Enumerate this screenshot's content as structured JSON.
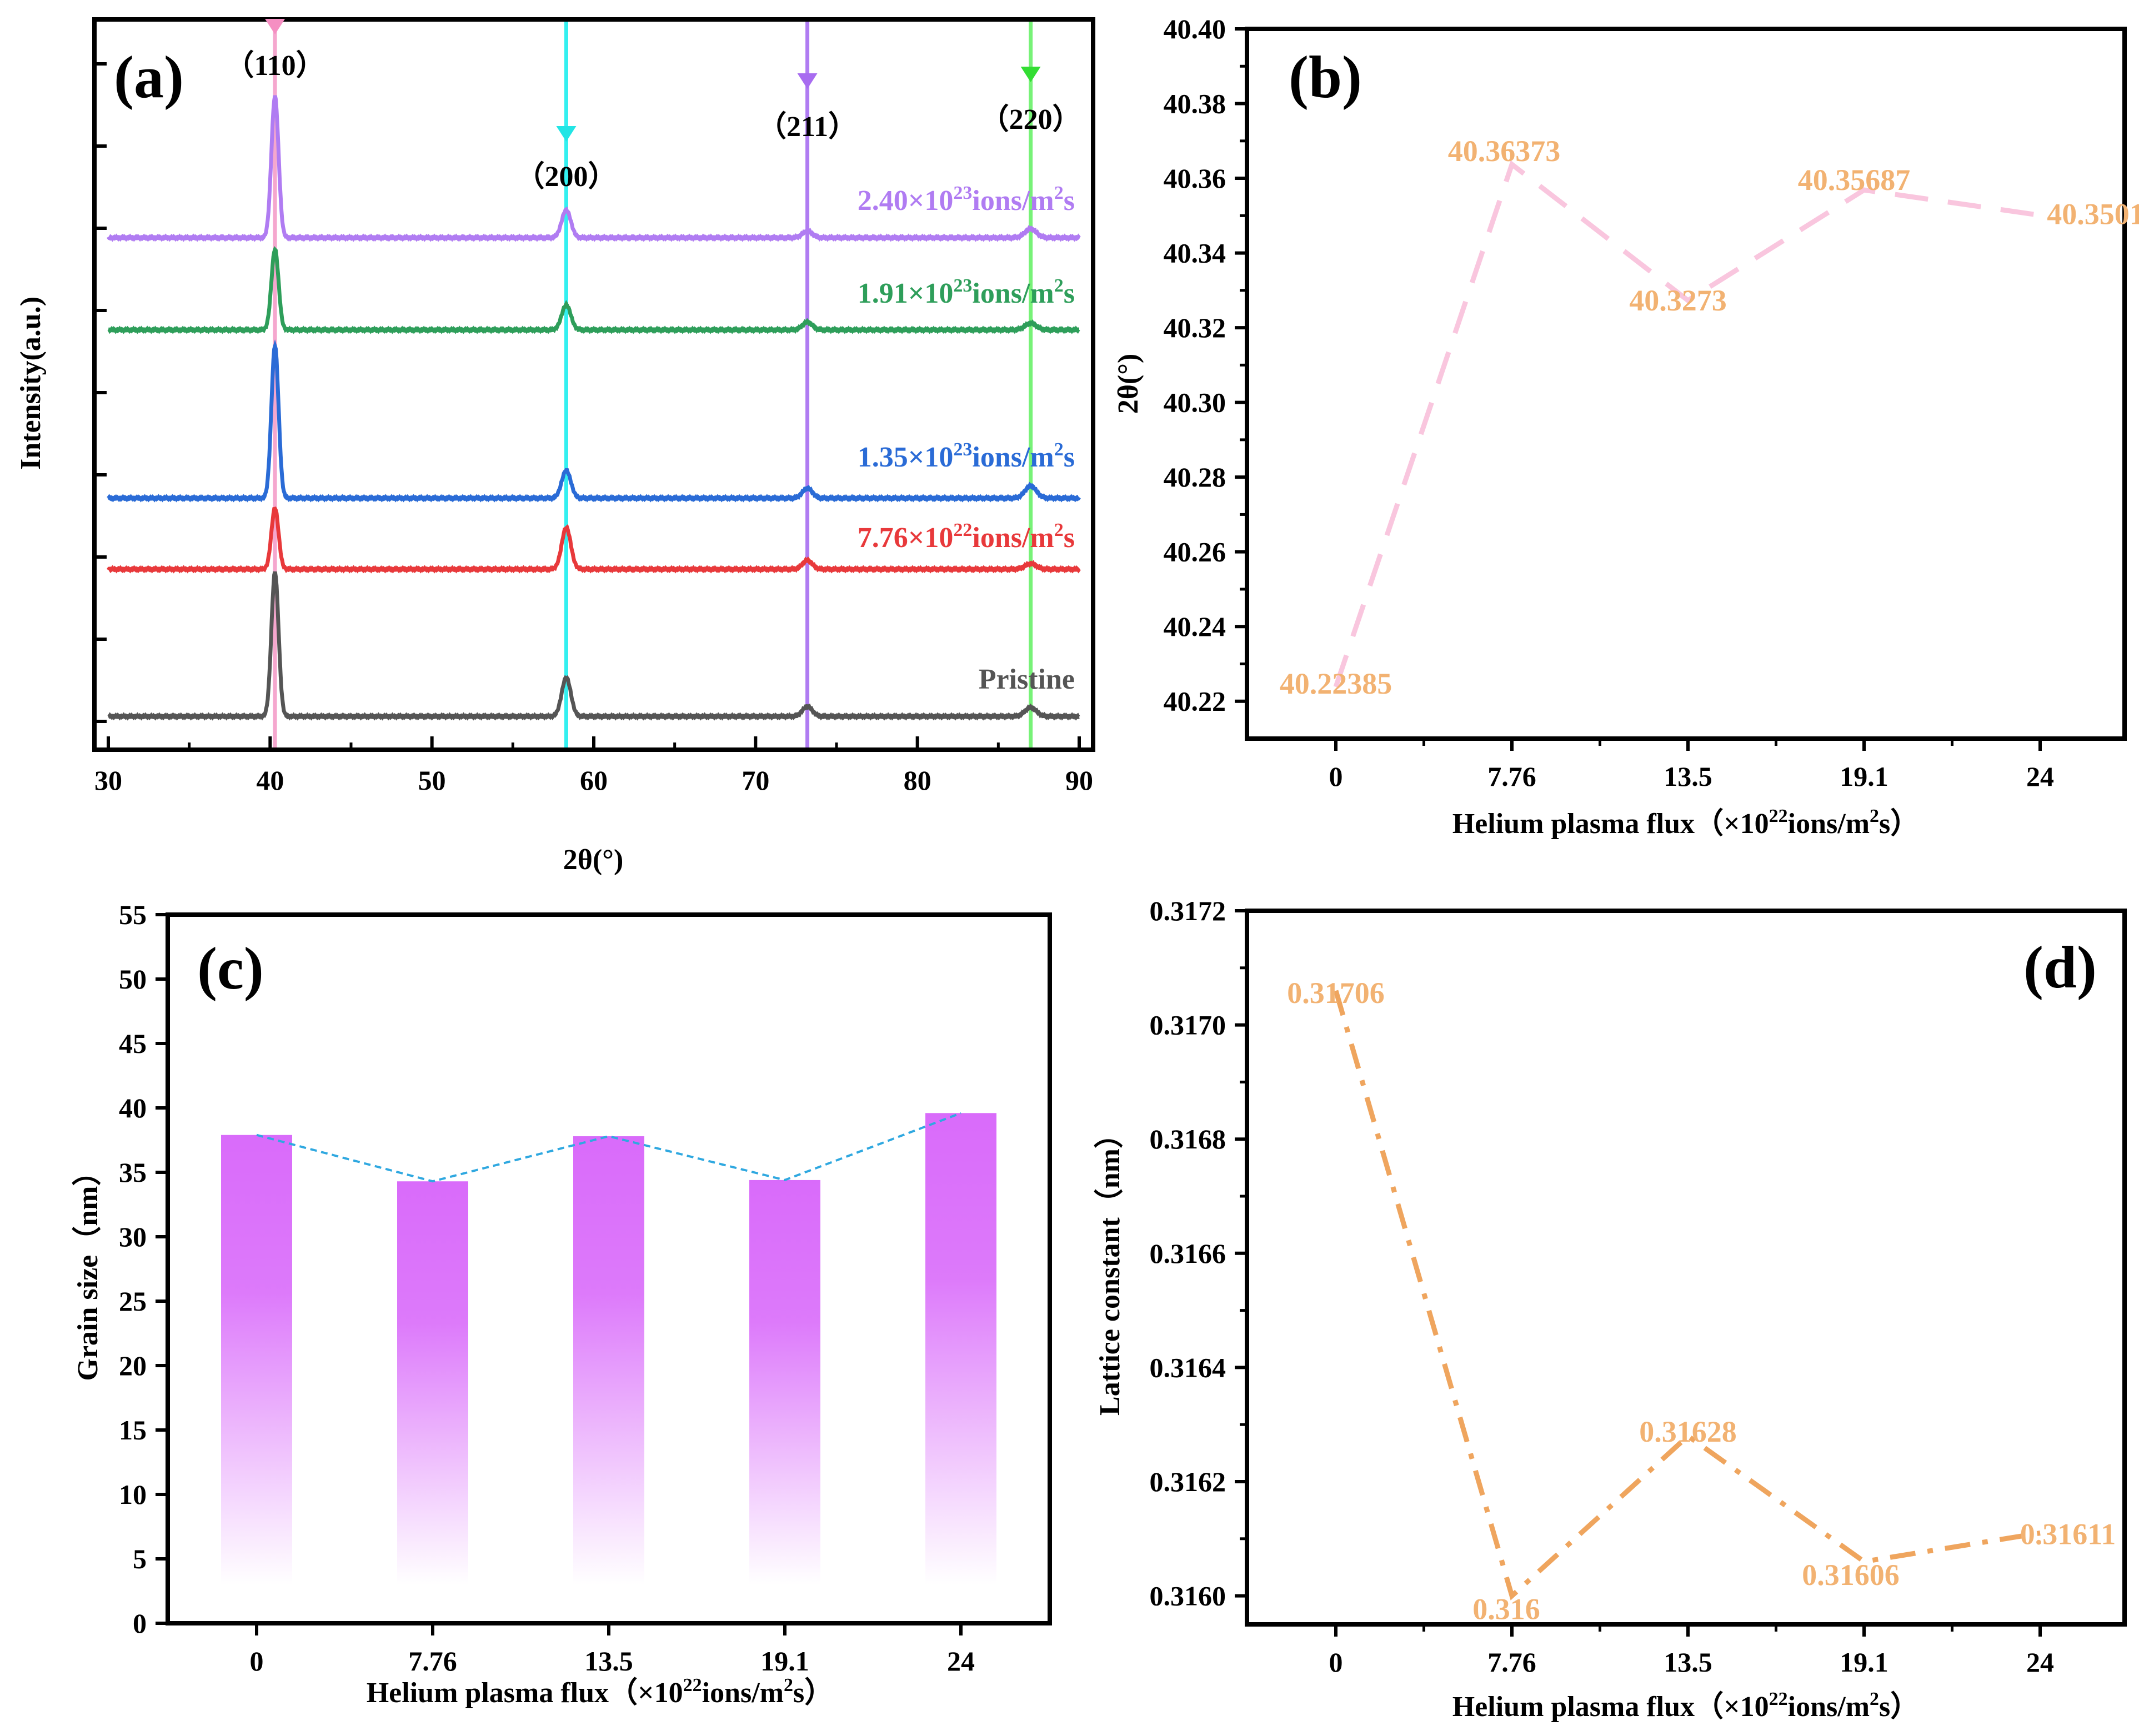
{
  "chart_data": [
    {
      "id": "a",
      "type": "line",
      "panel_label": "(a)",
      "xlabel": "2θ(°)",
      "ylabel": "Intensity(a.u.)",
      "xlim": [
        30,
        90
      ],
      "xticks": [
        30,
        40,
        50,
        60,
        70,
        80,
        90
      ],
      "peaks": [
        {
          "label": "（110）",
          "position": 40.3,
          "color": "#F5A7CE",
          "marker_color": "#F58FC2"
        },
        {
          "label": "（200）",
          "position": 58.3,
          "color": "#33F0F0",
          "marker_color": "#22E5E5"
        },
        {
          "label": "（211）",
          "position": 73.2,
          "color": "#B07CF2",
          "marker_color": "#A86CF0"
        },
        {
          "label": "（220）",
          "position": 87.0,
          "color": "#77F277",
          "marker_color": "#33DD33"
        }
      ],
      "series": [
        {
          "name": "Pristine",
          "label": "Pristine",
          "label_parts": [
            "Pristine"
          ],
          "color": "#555555",
          "offset": 0,
          "heights": [
            260,
            70,
            18,
            16
          ]
        },
        {
          "name": "7.76e22",
          "label": "7.76×10²²ions/m²s",
          "label_parts": [
            "7.76×10",
            "22",
            "ions/m",
            "2",
            "s"
          ],
          "color": "#E8393B",
          "offset": 1,
          "heights": [
            110,
            75,
            16,
            10
          ]
        },
        {
          "name": "1.35e23",
          "label": "1.35×10²³ions/m²s",
          "label_parts": [
            "1.35×10",
            "23",
            "ions/m",
            "2",
            "s"
          ],
          "color": "#2A6BD6",
          "offset": 2,
          "heights": [
            275,
            50,
            18,
            22
          ]
        },
        {
          "name": "1.91e23",
          "label": "1.91×10²³ions/m²s",
          "label_parts": [
            "1.91×10",
            "23",
            "ions/m",
            "2",
            "s"
          ],
          "color": "#2E9E5A",
          "offset": 3,
          "heights": [
            145,
            45,
            14,
            12
          ]
        },
        {
          "name": "2.40e23",
          "label": "2.40×10²³ions/m²s",
          "label_parts": [
            "2.40×10",
            "23",
            "ions/m",
            "2",
            "s"
          ],
          "color": "#B07CF2",
          "offset": 4,
          "heights": [
            255,
            50,
            12,
            16
          ]
        }
      ]
    },
    {
      "id": "b",
      "type": "line",
      "panel_label": "(b)",
      "xlabel": "Helium plasma flux（×10²²ions/m²s）",
      "xlabel_parts": [
        "Helium plasma flux（×10",
        "22",
        "ions/m",
        "2",
        "s）"
      ],
      "ylabel": "2θ(°)",
      "categories": [
        "0",
        "7.76",
        "13.5",
        "19.1",
        "24"
      ],
      "values": [
        40.22385,
        40.36373,
        40.3273,
        40.35687,
        40.3501
      ],
      "data_labels": [
        "40.22385",
        "40.36373",
        "40.3273",
        "40.35687",
        "40.3501"
      ],
      "ylim": [
        40.21,
        40.4
      ],
      "yticks": [
        "40.22",
        "40.24",
        "40.26",
        "40.28",
        "40.30",
        "40.32",
        "40.34",
        "40.36",
        "40.38",
        "40.40"
      ],
      "line_color": "#F9C6DE",
      "label_color": "#F2B272"
    },
    {
      "id": "c",
      "type": "bar",
      "panel_label": "(c)",
      "xlabel": "Helium plasma flux（×10²²ions/m²s）",
      "xlabel_parts": [
        "Helium plasma flux（×10",
        "22",
        "ions/m",
        "2",
        "s）"
      ],
      "ylabel": "Grain size（nm）",
      "categories": [
        "0",
        "7.76",
        "13.5",
        "19.1",
        "24"
      ],
      "values": [
        37.9,
        34.3,
        37.8,
        34.4,
        39.6
      ],
      "ylim": [
        0,
        55
      ],
      "yticks": [
        "0",
        "5",
        "10",
        "15",
        "20",
        "25",
        "30",
        "35",
        "40",
        "45",
        "50",
        "55"
      ],
      "bar_color": "#D96BFA",
      "line_color": "#2FA8E0"
    },
    {
      "id": "d",
      "type": "line",
      "panel_label": "(d)",
      "xlabel": "Helium plasma flux（×10²²ions/m²s）",
      "xlabel_parts": [
        "Helium plasma flux（×10",
        "22",
        "ions/m",
        "2",
        "s）"
      ],
      "ylabel": "Lattice constant（nm）",
      "categories": [
        "0",
        "7.76",
        "13.5",
        "19.1",
        "24"
      ],
      "values": [
        0.31706,
        0.316,
        0.31628,
        0.31606,
        0.31611
      ],
      "data_labels": [
        "0.31706",
        "0.316",
        "0.31628",
        "0.31606",
        "0.31611"
      ],
      "ylim": [
        0.31595,
        0.3172
      ],
      "yticks": [
        "0.3160",
        "0.3162",
        "0.3164",
        "0.3166",
        "0.3168",
        "0.3170",
        "0.3172"
      ],
      "line_color": "#EFA55E",
      "label_color": "#F2B272"
    }
  ]
}
